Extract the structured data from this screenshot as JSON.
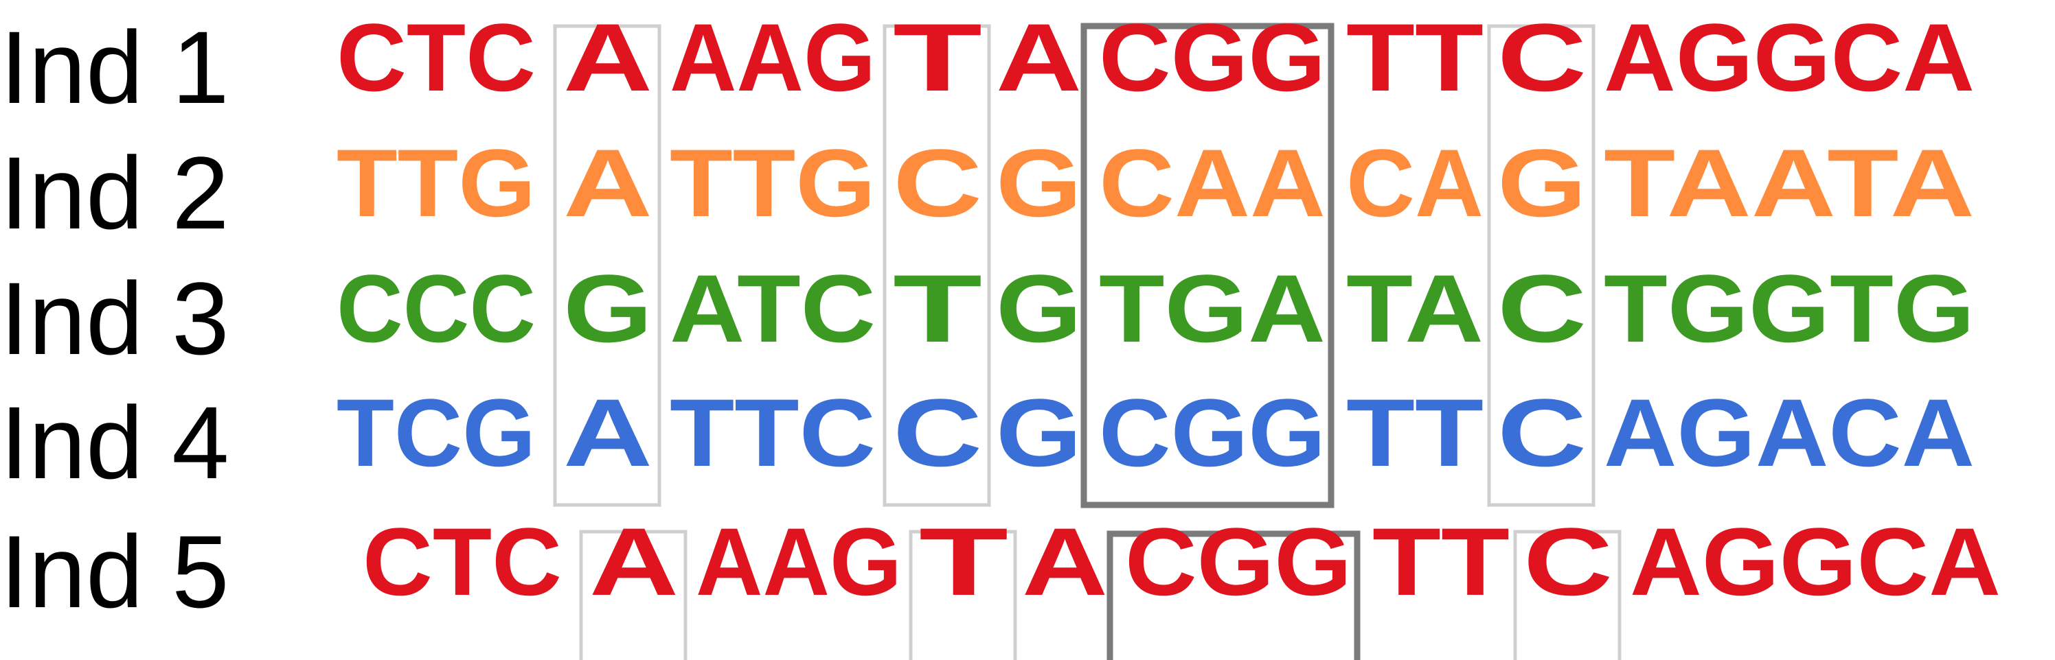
{
  "colors": {
    "red": "#e0141e",
    "orange": "#ff8c3c",
    "green": "#3c9a23",
    "blue": "#3a6fd8"
  },
  "rows": [
    {
      "label": "Ind 1",
      "color": "#e0141e",
      "segments": [
        "CTC",
        "A",
        "AAG",
        "T",
        "A",
        "CGG",
        "TT",
        "C",
        "AGGCA"
      ]
    },
    {
      "label": "Ind 2",
      "color": "#ff8c3c",
      "segments": [
        "TTG",
        "A",
        "TTG",
        "C",
        "G",
        "CAA",
        "CA",
        "G",
        "TAATA"
      ]
    },
    {
      "label": "Ind 3",
      "color": "#3c9a23",
      "segments": [
        "CCC",
        "G",
        "ATC",
        "T",
        "G",
        "TGA",
        "TA",
        "C",
        "TGGTG"
      ]
    },
    {
      "label": "Ind 4",
      "color": "#3a6fd8",
      "segments": [
        "TCG",
        "A",
        "TTC",
        "C",
        "G",
        "CGG",
        "TT",
        "C",
        "AGACA"
      ]
    },
    {
      "label": "Ind 5",
      "color": "#e0141e",
      "segments": [
        "CTC",
        "A",
        "AAG",
        "T",
        "A",
        "CGG",
        "TT",
        "C",
        "AGGCA"
      ]
    }
  ]
}
